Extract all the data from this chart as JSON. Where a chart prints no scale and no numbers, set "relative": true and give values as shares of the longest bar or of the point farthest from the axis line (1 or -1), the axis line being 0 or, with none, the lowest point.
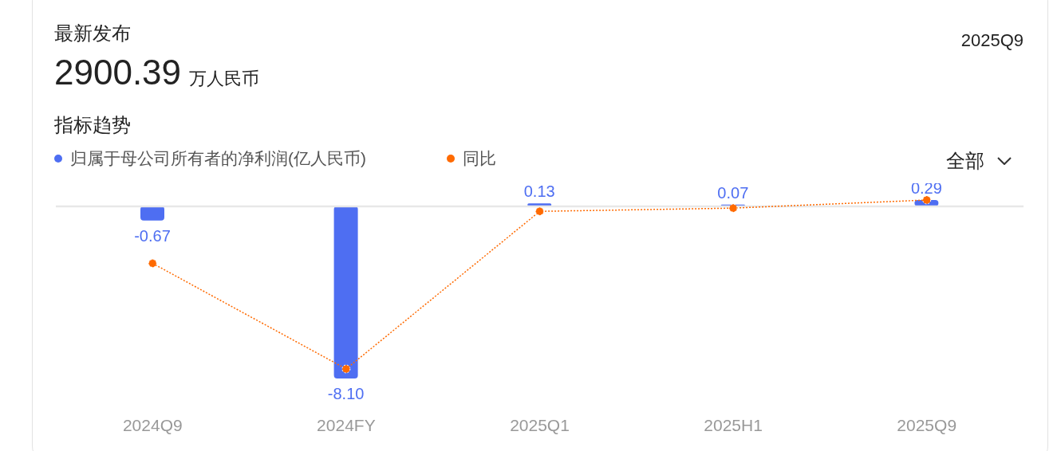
{
  "chart_data": [
    {
      "type": "bar",
      "title": "指标趋势",
      "annotations": [
        "最新发布",
        "2900.39",
        "万人民币",
        "2025Q9",
        "全部"
      ],
      "categories": [
        "2024Q9",
        "2024FY",
        "2025Q1",
        "2025H1",
        "2025Q9"
      ],
      "series": [
        {
          "name": "归属于母公司所有者的净利润(亿人民币)",
          "color": "#4e6ef2",
          "values": [
            -0.67,
            -8.1,
            0.13,
            0.07,
            0.29
          ],
          "value_labels": [
            "-0.67",
            "-8.10",
            "0.13",
            "0.07",
            "0.29"
          ]
        }
      ],
      "legend": "top left"
    },
    {
      "type": "line",
      "relative": true,
      "categories": [
        null,
        null,
        null,
        null,
        null
      ],
      "series": [
        {
          "name": "同比",
          "color": "#ff6a00",
          "line_style": "dotted",
          "marker": "circle",
          "values": [
            -0.35,
            -1,
            -0.03,
            -0.01,
            0.04
          ]
        }
      ],
      "legend": "top left"
    }
  ]
}
